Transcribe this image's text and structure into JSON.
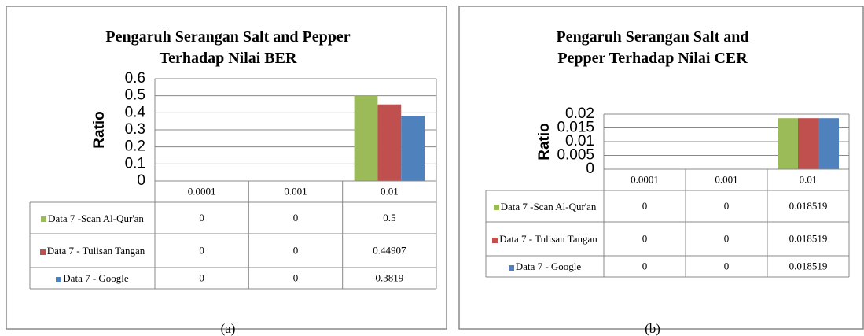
{
  "chart_data": [
    {
      "type": "bar",
      "title": "Pengaruh Serangan Salt and Pepper Terhadap Nilai BER",
      "y_label": "Ratio",
      "categories": [
        "0.0001",
        "0.001",
        "0.01"
      ],
      "series": [
        {
          "name": "Data 7 -Scan Al-Qur'an",
          "color": "#9bbb59",
          "values": [
            0,
            0,
            0.5
          ]
        },
        {
          "name": "Data 7 - Tulisan Tangan",
          "color": "#c0504d",
          "values": [
            0,
            0,
            0.44907
          ]
        },
        {
          "name": "Data 7 - Google",
          "color": "#4f81bd",
          "values": [
            0,
            0,
            0.3819
          ]
        }
      ],
      "ylim": [
        0,
        0.6
      ],
      "yticks": [
        0,
        0.1,
        0.2,
        0.3,
        0.4,
        0.5,
        0.6
      ],
      "grid": true,
      "caption": "(a)"
    },
    {
      "type": "bar",
      "title": "Pengaruh Serangan Salt and Pepper Terhadap Nilai CER",
      "y_label": "Ratio",
      "categories": [
        "0.0001",
        "0.001",
        "0.01"
      ],
      "series": [
        {
          "name": "Data 7 -Scan Al-Qur'an",
          "color": "#9bbb59",
          "values": [
            0,
            0,
            0.018519
          ]
        },
        {
          "name": "Data 7 - Tulisan Tangan",
          "color": "#c0504d",
          "values": [
            0,
            0,
            0.018519
          ]
        },
        {
          "name": "Data 7 - Google",
          "color": "#4f81bd",
          "values": [
            0,
            0,
            0.018519
          ]
        }
      ],
      "ylim": [
        0,
        0.02
      ],
      "yticks": [
        0,
        0.005,
        0.01,
        0.015,
        0.02
      ],
      "grid": true,
      "caption": "(b)"
    }
  ]
}
